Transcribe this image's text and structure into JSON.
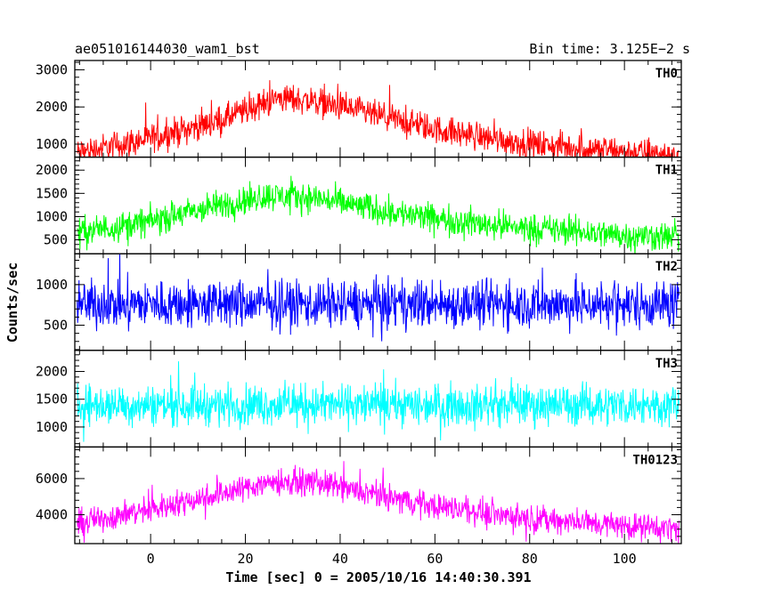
{
  "header": {
    "title": "ae051016144030_wam1_bst",
    "bin_time": "Bin time: 3.125E−2 s"
  },
  "chart_data": {
    "type": "line",
    "ylabel": "Counts/sec",
    "xlabel": "Time [sec] 0 = 2005/10/16 14:40:30.391",
    "x_axis": {
      "range": [
        -16,
        112
      ],
      "ticks": [
        0,
        20,
        40,
        60,
        80,
        100
      ],
      "tick_labels": [
        "0",
        "20",
        "40",
        "60",
        "80",
        "100"
      ]
    },
    "panels": [
      {
        "name": "TH0",
        "color": "#ff0000",
        "ylim": [
          650,
          3250
        ],
        "ticks": [
          1000,
          2000,
          3000
        ],
        "tick_labels": [
          "1000",
          "2000",
          "3000"
        ],
        "profile": {
          "x": [
            -16,
            0,
            15,
            27,
            35,
            45,
            60,
            80,
            100,
            112
          ],
          "y": [
            750,
            1150,
            1650,
            2250,
            2150,
            1850,
            1400,
            1000,
            800,
            680
          ]
        },
        "noise": 330
      },
      {
        "name": "TH1",
        "color": "#00ff00",
        "ylim": [
          200,
          2280
        ],
        "ticks": [
          500,
          1000,
          1500,
          2000
        ],
        "tick_labels": [
          "500",
          "1000",
          "1500",
          "2000"
        ],
        "profile": {
          "x": [
            -16,
            0,
            15,
            25,
            35,
            45,
            60,
            80,
            100,
            112
          ],
          "y": [
            650,
            900,
            1250,
            1450,
            1400,
            1200,
            950,
            750,
            600,
            560
          ]
        },
        "noise": 270
      },
      {
        "name": "TH2",
        "color": "#0000ff",
        "ylim": [
          190,
          1380
        ],
        "ticks": [
          500,
          1000
        ],
        "tick_labels": [
          "500",
          "1000"
        ],
        "profile": {
          "x": [
            -16,
            112
          ],
          "y": [
            760,
            760
          ]
        },
        "noise": 250
      },
      {
        "name": "TH3",
        "color": "#00ffff",
        "ylim": [
          640,
          2380
        ],
        "ticks": [
          1000,
          1500,
          2000
        ],
        "tick_labels": [
          "1000",
          "1500",
          "2000"
        ],
        "profile": {
          "x": [
            -16,
            112
          ],
          "y": [
            1400,
            1400
          ]
        },
        "noise": 310
      },
      {
        "name": "TH0123",
        "color": "#ff00ff",
        "ylim": [
          2400,
          7750
        ],
        "ticks": [
          4000,
          6000
        ],
        "tick_labels": [
          "4000",
          "6000"
        ],
        "profile": {
          "x": [
            -16,
            0,
            15,
            25,
            35,
            45,
            60,
            80,
            100,
            112
          ],
          "y": [
            3500,
            4300,
            5200,
            5800,
            5800,
            5200,
            4500,
            3800,
            3400,
            3200
          ]
        },
        "noise": 620
      }
    ]
  }
}
